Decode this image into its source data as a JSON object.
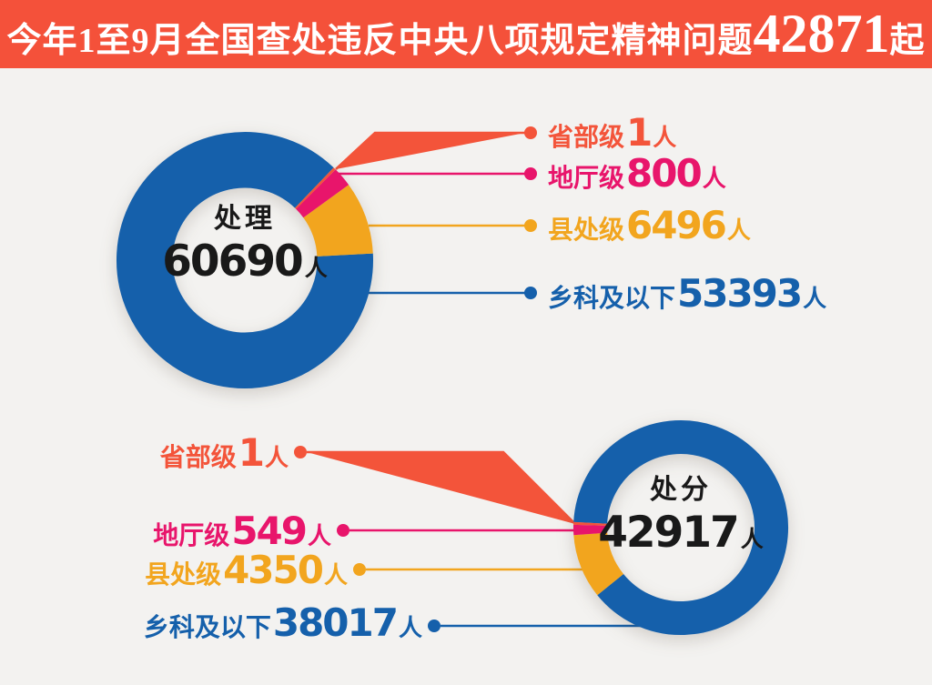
{
  "page": {
    "background": "#f3f2f0"
  },
  "header": {
    "background": "#f4513a",
    "text_color": "#ffffff",
    "title_prefix": "今年1至9月全国查处违反中央八项规定精神问题",
    "title_number": "42871",
    "title_suffix": "起",
    "full_title": "今年1至9月全国查处违反中央八项规定精神问题42871起"
  },
  "chart_data": [
    {
      "type": "pie",
      "variant": "donut",
      "center_label": "处理",
      "total": 60690,
      "unit": "人",
      "legend_position": "right",
      "segments": [
        {
          "label": "省部级",
          "value": 1,
          "color": "#f3543a",
          "start_deg": 43.8,
          "end_deg": 45.0
        },
        {
          "label": "地厅级",
          "value": 800,
          "color": "#e8156b",
          "start_deg": 45.0,
          "end_deg": 54.0
        },
        {
          "label": "县处级",
          "value": 6496,
          "color": "#f2a51e",
          "start_deg": 54.0,
          "end_deg": 87.0
        },
        {
          "label": "乡科及以下",
          "value": 53393,
          "color": "#1560ab",
          "start_deg": 87.0,
          "end_deg": 403.8
        }
      ]
    },
    {
      "type": "pie",
      "variant": "donut",
      "center_label": "处分",
      "total": 42917,
      "unit": "人",
      "legend_position": "left",
      "segments": [
        {
          "label": "省部级",
          "value": 1,
          "color": "#f3543a",
          "start_deg": 271.5,
          "end_deg": 273.0
        },
        {
          "label": "地厅级",
          "value": 549,
          "color": "#e8156b",
          "start_deg": 266.0,
          "end_deg": 271.5
        },
        {
          "label": "县处级",
          "value": 4350,
          "color": "#f2a51e",
          "start_deg": 231.0,
          "end_deg": 266.0
        },
        {
          "label": "乡科及以下",
          "value": 38017,
          "color": "#1560ab",
          "start_deg": 273.0,
          "end_deg": 591.0
        }
      ]
    }
  ]
}
